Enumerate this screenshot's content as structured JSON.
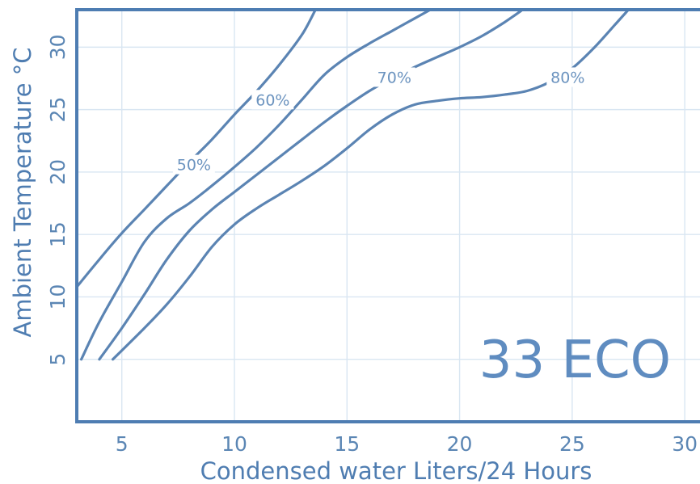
{
  "chart_data": {
    "type": "line",
    "xlabel": "Condensed water Liters/24 Hours",
    "ylabel": "Ambient Temperature °C",
    "xlim": [
      3,
      31
    ],
    "ylim": [
      0,
      33
    ],
    "x_ticks": [
      5,
      10,
      15,
      20,
      25,
      30
    ],
    "y_ticks": [
      5,
      10,
      15,
      20,
      25,
      30
    ],
    "grid": true,
    "annotation": "33 ECO",
    "series": [
      {
        "name": "50%",
        "points": [
          [
            3,
            10.8
          ],
          [
            4,
            13
          ],
          [
            5,
            15.1
          ],
          [
            6,
            17
          ],
          [
            7,
            18.9
          ],
          [
            8,
            20.8
          ],
          [
            9,
            22.6
          ],
          [
            10,
            24.6
          ],
          [
            11,
            26.5
          ],
          [
            12,
            28.6
          ],
          [
            13,
            31
          ],
          [
            13.6,
            33
          ]
        ]
      },
      {
        "name": "60%",
        "points": [
          [
            3.2,
            5
          ],
          [
            4,
            8
          ],
          [
            5,
            11.2
          ],
          [
            6,
            14.4
          ],
          [
            7,
            16.3
          ],
          [
            8,
            17.5
          ],
          [
            9,
            18.9
          ],
          [
            10,
            20.4
          ],
          [
            11,
            22
          ],
          [
            12,
            23.8
          ],
          [
            13,
            25.8
          ],
          [
            14,
            27.8
          ],
          [
            15,
            29.2
          ],
          [
            16,
            30.3
          ],
          [
            17,
            31.3
          ],
          [
            18,
            32.3
          ],
          [
            18.7,
            33
          ]
        ]
      },
      {
        "name": "70%",
        "points": [
          [
            4,
            5
          ],
          [
            5,
            7.5
          ],
          [
            6,
            10.2
          ],
          [
            7,
            13
          ],
          [
            8,
            15.3
          ],
          [
            9,
            17
          ],
          [
            10,
            18.4
          ],
          [
            11,
            19.8
          ],
          [
            12,
            21.2
          ],
          [
            13,
            22.6
          ],
          [
            14,
            24
          ],
          [
            15,
            25.3
          ],
          [
            16,
            26.5
          ],
          [
            17,
            27.5
          ],
          [
            18,
            28.4
          ],
          [
            19,
            29.2
          ],
          [
            20,
            30
          ],
          [
            21,
            30.9
          ],
          [
            22,
            32
          ],
          [
            22.8,
            33
          ]
        ]
      },
      {
        "name": "80%",
        "points": [
          [
            4.6,
            5
          ],
          [
            6,
            7.5
          ],
          [
            7,
            9.4
          ],
          [
            8,
            11.6
          ],
          [
            9,
            14
          ],
          [
            10,
            15.8
          ],
          [
            11,
            17.1
          ],
          [
            12,
            18.2
          ],
          [
            13,
            19.3
          ],
          [
            14,
            20.5
          ],
          [
            15,
            21.9
          ],
          [
            16,
            23.4
          ],
          [
            17,
            24.6
          ],
          [
            18,
            25.4
          ],
          [
            19,
            25.7
          ],
          [
            20,
            25.9
          ],
          [
            21,
            26
          ],
          [
            22,
            26.2
          ],
          [
            23,
            26.5
          ],
          [
            24,
            27.2
          ],
          [
            25,
            28.3
          ],
          [
            26,
            30
          ],
          [
            27,
            32
          ],
          [
            27.5,
            33
          ]
        ]
      }
    ]
  }
}
